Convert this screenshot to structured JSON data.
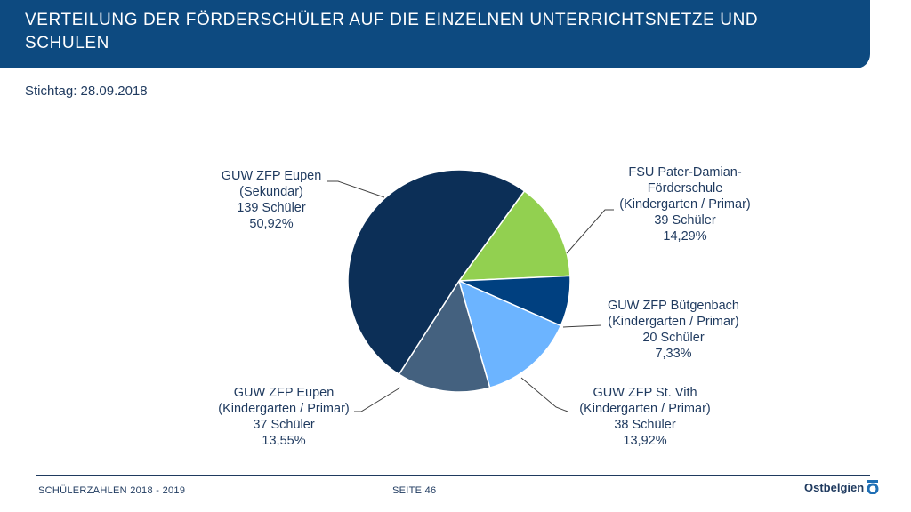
{
  "header": {
    "title": "VERTEILUNG DER FÖRDERSCHÜLER AUF DIE EINZELNEN UNTERRICHTSNETZE UND SCHULEN"
  },
  "subtitle": "Stichtag: 28.09.2018",
  "footer": {
    "left": "SCHÜLERZAHLEN 2018 - 2019",
    "center": "SEITE 46",
    "logo_text": "Ostbelgien"
  },
  "colors": {
    "header": "#0d4a80",
    "text": "#1f3a5f"
  },
  "chart_data": {
    "type": "pie",
    "start_angle_deg": 36,
    "slices": [
      {
        "label_lines": [
          "FSU Pater-Damian-",
          "Förderschule",
          "(Kindergarten / Primar)",
          "39 Schüler",
          "14,29%"
        ],
        "value": 39,
        "color": "#92d050"
      },
      {
        "label_lines": [
          "GUW ZFP Bütgenbach",
          "(Kindergarten / Primar)",
          "20 Schüler",
          "7,33%"
        ],
        "value": 20,
        "color": "#004080"
      },
      {
        "label_lines": [
          "GUW ZFP St. Vith",
          "(Kindergarten / Primar)",
          "38 Schüler",
          "13,92%"
        ],
        "value": 38,
        "color": "#6cb4ff"
      },
      {
        "label_lines": [
          "GUW ZFP Eupen",
          "(Kindergarten / Primar)",
          "37 Schüler",
          "13,55%"
        ],
        "value": 37,
        "color": "#44617f"
      },
      {
        "label_lines": [
          "GUW ZFP Eupen",
          "(Sekundar)",
          "139 Schüler",
          "50,92%"
        ],
        "value": 139,
        "color": "#0c2f57"
      }
    ]
  }
}
